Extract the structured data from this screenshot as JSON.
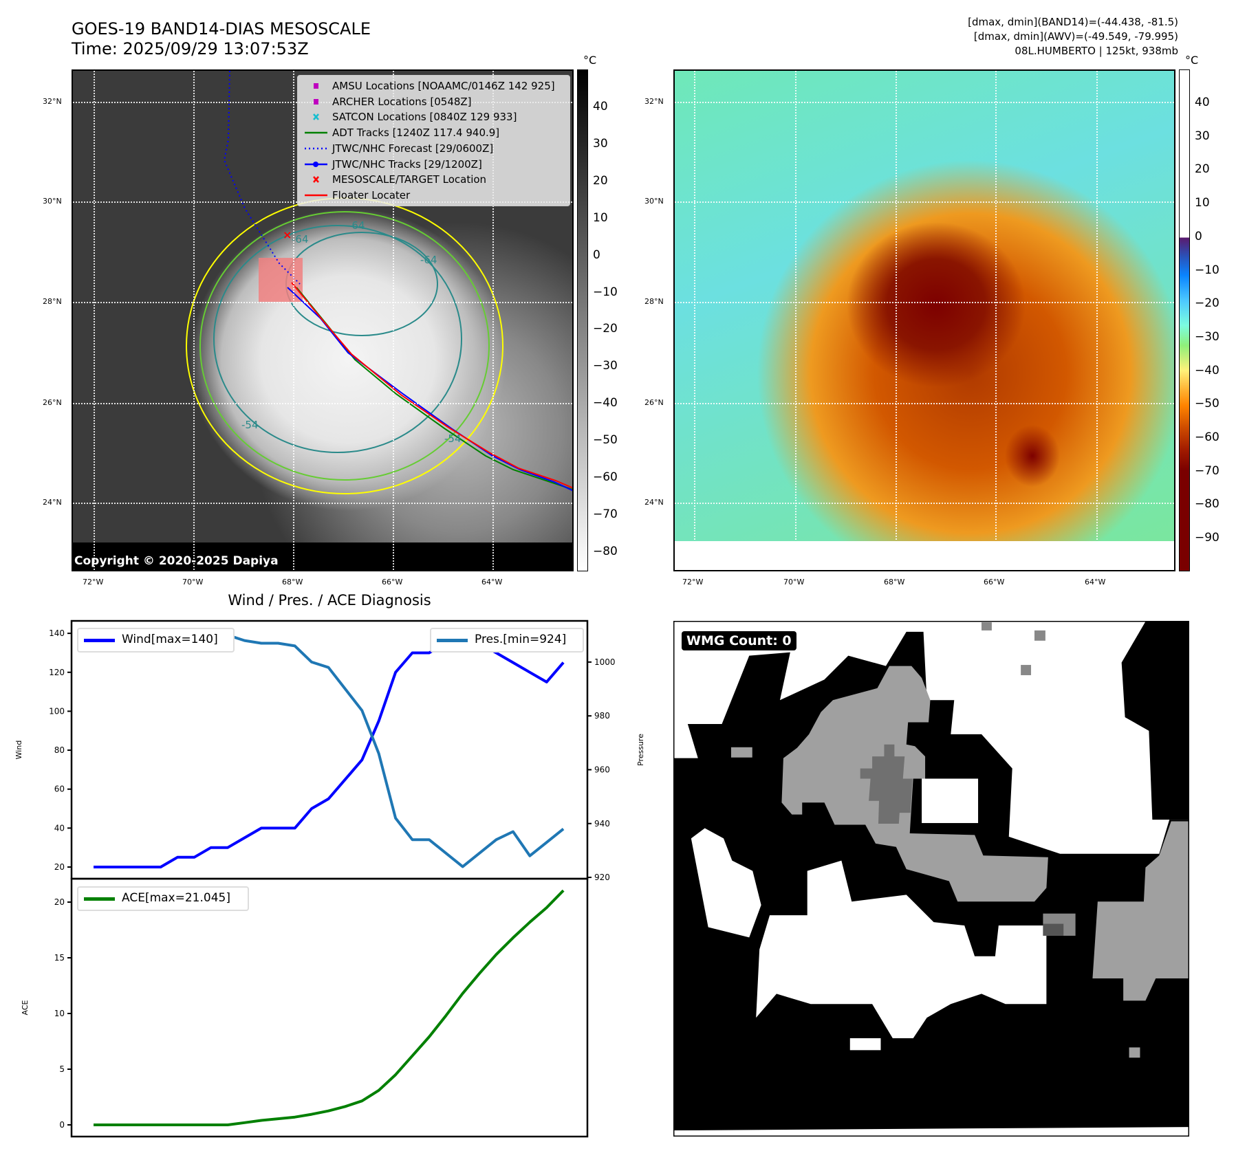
{
  "header": {
    "title_line1": "GOES-19 BAND14-DIAS MESOSCALE",
    "title_line2": "Time: 2025/09/29 13:07:53Z",
    "info_line1": "[dmax, dmin](BAND14)=(-44.438, -81.5)",
    "info_line2": "[dmax, dmin](AWV)=(-49.549, -79.995)",
    "info_line3": "08L.HUMBERTO | 125kt, 938mb"
  },
  "map": {
    "lat_ticks": [
      "32°N",
      "30°N",
      "28°N",
      "26°N",
      "24°N"
    ],
    "lon_ticks": [
      "72°W",
      "70°W",
      "68°W",
      "66°W",
      "64°W"
    ],
    "contour_labels": [
      "-64",
      "-64",
      "-64",
      "-54",
      "-54"
    ],
    "copyright": "Copyright © 2020-2025 Dapiya",
    "legend": [
      {
        "label": "AMSU Locations [NOAAMC/0146Z 142 925]",
        "color": "#bf00bf",
        "symbol": "square"
      },
      {
        "label": "ARCHER Locations [0548Z]",
        "color": "#bf00bf",
        "symbol": "square"
      },
      {
        "label": "SATCON Locations [0840Z 129 933]",
        "color": "#17becf",
        "symbol": "x"
      },
      {
        "label": "ADT Tracks [1240Z 117.4 940.9]",
        "color": "#008000",
        "symbol": "line"
      },
      {
        "label": "JTWC/NHC Forecast [29/0600Z]",
        "color": "#0000ff",
        "symbol": "dotted"
      },
      {
        "label": "JTWC/NHC Tracks [29/1200Z]",
        "color": "#0000ff",
        "symbol": "line-dot"
      },
      {
        "label": "MESOSCALE/TARGET Location",
        "color": "#ff0000",
        "symbol": "x"
      },
      {
        "label": "Floater Locater",
        "color": "#ff0000",
        "symbol": "line"
      }
    ]
  },
  "colorbar_left": {
    "unit": "°C",
    "ticks": [
      "40",
      "30",
      "20",
      "10",
      "0",
      "−10",
      "−20",
      "−30",
      "−40",
      "−50",
      "−60",
      "−70",
      "−80"
    ]
  },
  "colorbar_right": {
    "unit": "°C",
    "ticks": [
      "40",
      "30",
      "20",
      "10",
      "0",
      "−10",
      "−20",
      "−30",
      "−40",
      "−50",
      "−60",
      "−70",
      "−80",
      "−90"
    ]
  },
  "wmg": {
    "badge": "WMG Count: 0"
  },
  "chart_data": {
    "type": "line",
    "title": "Wind / Pres. / ACE Diagnosis",
    "x": [
      0,
      1,
      2,
      3,
      4,
      5,
      6,
      7,
      8,
      9,
      10,
      11,
      12,
      13,
      14,
      15,
      16,
      17,
      18,
      19,
      20,
      21,
      22,
      23,
      24,
      25,
      26,
      27,
      28
    ],
    "xlim": [
      -1.31,
      29.43
    ],
    "panels": [
      {
        "ylabel": "Wind",
        "ylim": [
          14,
          146.4
        ],
        "yticks": [
          20,
          40,
          60,
          80,
          100,
          120,
          140
        ],
        "series": [
          {
            "name": "Wind[max=140]",
            "color": "#0000ff",
            "values": [
              20,
              20,
              20,
              20,
              20,
              25,
              25,
              30,
              30,
              35,
              40,
              40,
              40,
              50,
              55,
              65,
              75,
              95,
              120,
              130,
              130,
              135,
              140,
              135,
              130,
              125,
              120,
              115,
              125
            ]
          }
        ],
        "legend": "upper-left"
      },
      {
        "ylabel": "Pressure",
        "axis": "right",
        "ylim": [
          919.5,
          1015.3
        ],
        "yticks": [
          920,
          940,
          960,
          980,
          1000
        ],
        "series": [
          {
            "name": "Pres.[min=924]",
            "color": "#1f77b4",
            "values": [
              1011,
              1011,
              1011,
              1011,
              1011,
              1010,
              1010,
              1010,
              1010,
              1008,
              1007,
              1007,
              1006,
              1000,
              998,
              990,
              982,
              966,
              942,
              934,
              934,
              929,
              924,
              929,
              934,
              937,
              928,
              933,
              938
            ]
          }
        ],
        "legend": "upper-right"
      },
      {
        "ylabel": "ACE",
        "ylim": [
          -1.05,
          22.1
        ],
        "yticks": [
          0,
          5,
          10,
          15,
          20
        ],
        "series": [
          {
            "name": "ACE[max=21.045]",
            "color": "#008000",
            "values": [
              0,
              0,
              0,
              0,
              0,
              0,
              0,
              0,
              0,
              0.2,
              0.4,
              0.55,
              0.7,
              0.95,
              1.25,
              1.65,
              2.15,
              3.1,
              4.5,
              6.2,
              7.9,
              9.8,
              11.8,
              13.6,
              15.3,
              16.8,
              18.2,
              19.5,
              21.045
            ]
          }
        ],
        "legend": "upper-left"
      }
    ]
  }
}
